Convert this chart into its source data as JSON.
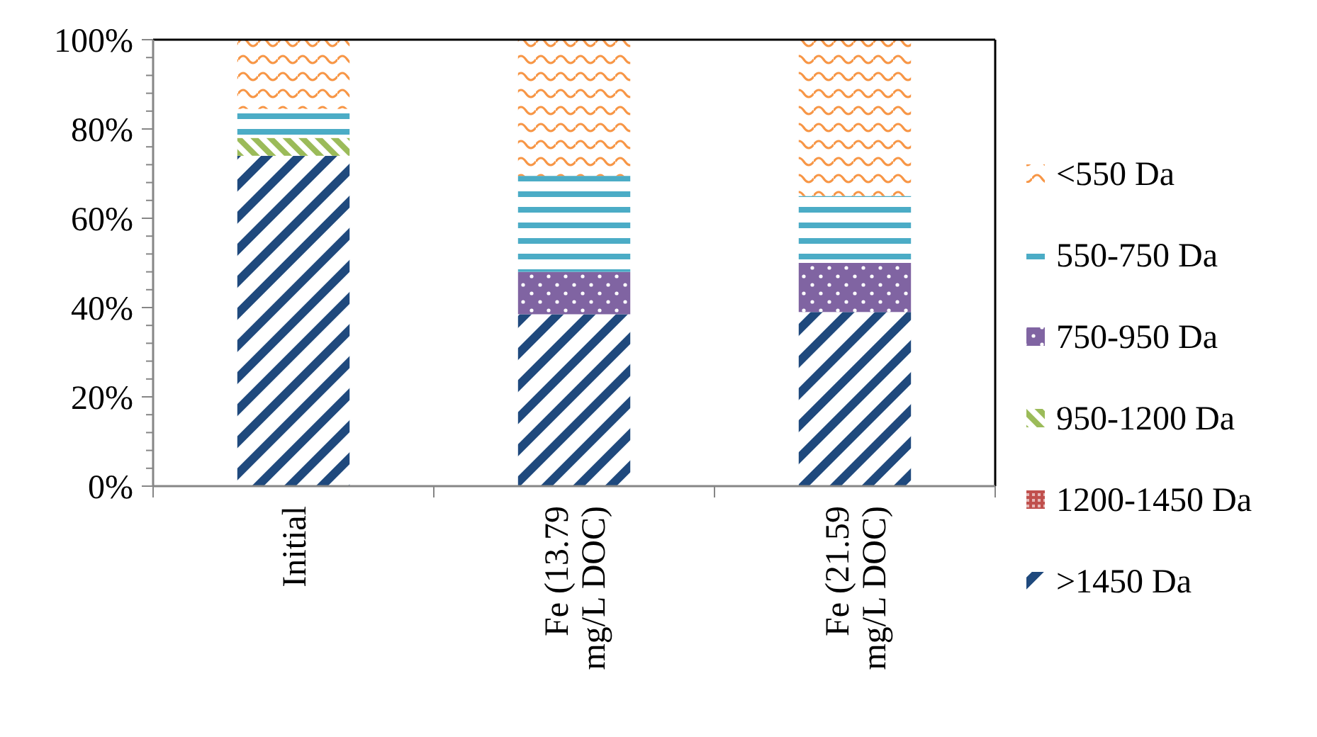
{
  "chart_data": {
    "type": "bar",
    "stacked": true,
    "categories": [
      "Initial",
      "Fe (13.79 mg/L DOC)",
      "Fe (21.59 mg/L DOC)"
    ],
    "series": [
      {
        "name": ">1450 Da",
        "color": "#1f497d",
        "values": [
          74,
          38.5,
          39
        ]
      },
      {
        "name": "1200-1450 Da",
        "color": "#c0504d",
        "values": [
          0,
          0,
          0
        ]
      },
      {
        "name": "950-1200 Da",
        "color": "#9bbb59",
        "values": [
          4,
          0,
          0
        ]
      },
      {
        "name": "750-950 Da",
        "color": "#8064a2",
        "values": [
          0,
          9.5,
          11
        ]
      },
      {
        "name": "550-750 Da",
        "color": "#4bacc6",
        "values": [
          6.5,
          21.5,
          15
        ]
      },
      {
        "name": "<550 Da",
        "color": "#f79646",
        "values": [
          15.5,
          30.5,
          35
        ]
      }
    ],
    "ylim": [
      0,
      100
    ],
    "yticks": [
      {
        "value": 0,
        "label": "0%"
      },
      {
        "value": 4,
        "label": null
      },
      {
        "value": 8,
        "label": null
      },
      {
        "value": 12,
        "label": null
      },
      {
        "value": 16,
        "label": null
      },
      {
        "value": 20,
        "label": "20%"
      },
      {
        "value": 24,
        "label": null
      },
      {
        "value": 28,
        "label": null
      },
      {
        "value": 32,
        "label": null
      },
      {
        "value": 36,
        "label": null
      },
      {
        "value": 40,
        "label": "40%"
      },
      {
        "value": 44,
        "label": null
      },
      {
        "value": 48,
        "label": null
      },
      {
        "value": 52,
        "label": null
      },
      {
        "value": 56,
        "label": null
      },
      {
        "value": 60,
        "label": "60%"
      },
      {
        "value": 64,
        "label": null
      },
      {
        "value": 68,
        "label": null
      },
      {
        "value": 72,
        "label": null
      },
      {
        "value": 76,
        "label": null
      },
      {
        "value": 80,
        "label": "80%"
      },
      {
        "value": 84,
        "label": null
      },
      {
        "value": 88,
        "label": null
      },
      {
        "value": 92,
        "label": null
      },
      {
        "value": 96,
        "label": null
      },
      {
        "value": 100,
        "label": "100%"
      }
    ],
    "grid": false,
    "legend": "right"
  }
}
